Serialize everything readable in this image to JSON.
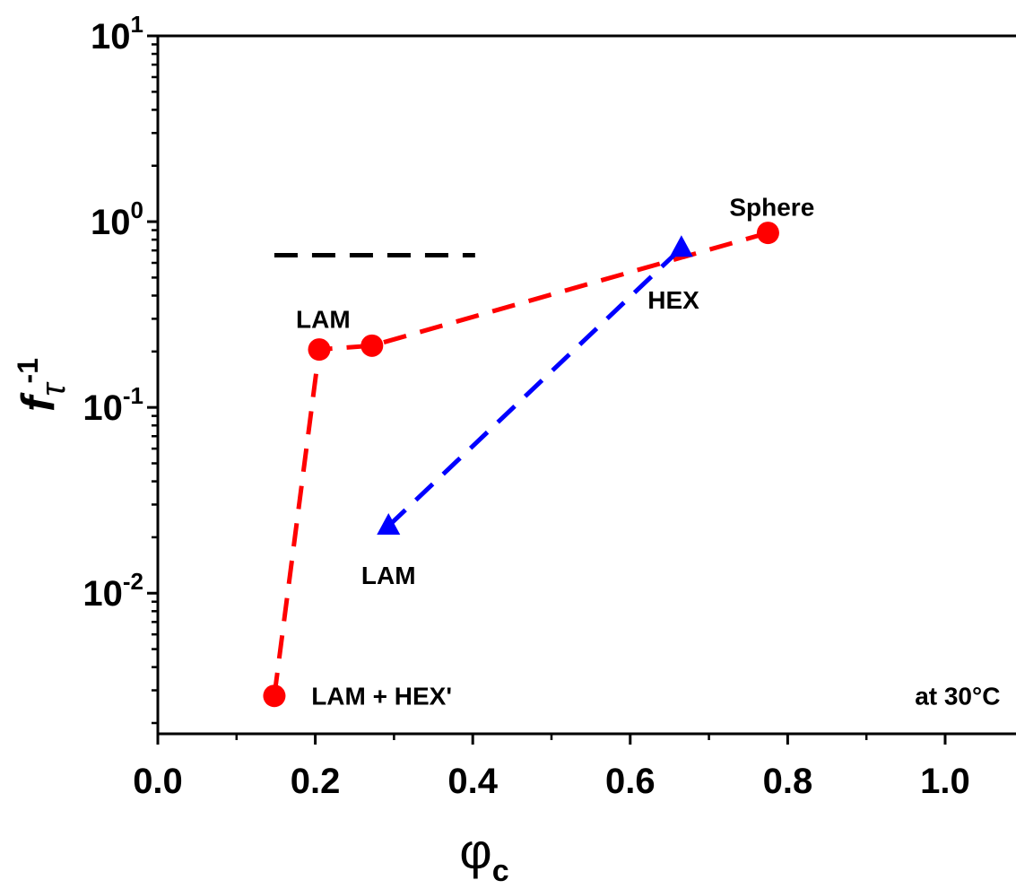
{
  "chart_data": {
    "type": "scatter",
    "xlabel": "φ",
    "xlabel_sub": "c",
    "ylabel": "f",
    "ylabel_sub": "τ",
    "ylabel_sup": "-1",
    "x_scale": "linear",
    "y_scale": "log",
    "xlim": [
      0.0,
      1.09
    ],
    "ylim": [
      0.00175,
      10
    ],
    "x_ticks": [
      {
        "value": 0.0,
        "label": "0.0"
      },
      {
        "value": 0.2,
        "label": "0.2"
      },
      {
        "value": 0.4,
        "label": "0.4"
      },
      {
        "value": 0.6,
        "label": "0.6"
      },
      {
        "value": 0.8,
        "label": "0.8"
      },
      {
        "value": 1.0,
        "label": "1.0"
      }
    ],
    "y_ticks": [
      {
        "value": 0.01,
        "base": "10",
        "exp": "-2"
      },
      {
        "value": 0.1,
        "base": "10",
        "exp": "-1"
      },
      {
        "value": 1,
        "base": "10",
        "exp": "0"
      },
      {
        "value": 10,
        "base": "10",
        "exp": "1"
      }
    ],
    "grid": false,
    "series": [
      {
        "marker": "circle",
        "color": "#ff0000",
        "line": "dashed",
        "points": [
          {
            "x": 0.148,
            "y": 0.0028
          },
          {
            "x": 0.205,
            "y": 0.205
          },
          {
            "x": 0.272,
            "y": 0.215
          },
          {
            "x": 0.775,
            "y": 0.87
          }
        ]
      },
      {
        "marker": "triangle",
        "color": "#0000ff",
        "line": "dashed",
        "points": [
          {
            "x": 0.293,
            "y": 0.023
          },
          {
            "x": 0.665,
            "y": 0.72
          }
        ]
      }
    ],
    "reference_line": {
      "color": "#000000",
      "style": "dashed",
      "y": 0.66,
      "x_start": 0.148,
      "x_end": 0.403
    },
    "annotations": [
      {
        "text": "Sphere",
        "x": 0.78,
        "y": 1.2,
        "anchor": "middle"
      },
      {
        "text": "HEX",
        "x": 0.655,
        "y": 0.38,
        "anchor": "middle"
      },
      {
        "text": "LAM",
        "x": 0.21,
        "y": 0.3,
        "anchor": "middle"
      },
      {
        "text": "LAM",
        "x": 0.293,
        "y": 0.0125,
        "anchor": "middle"
      },
      {
        "text": "LAM + HEX'",
        "x": 0.195,
        "y": 0.0028,
        "anchor": "start"
      },
      {
        "text": "at 30°C",
        "x": 1.07,
        "y": 0.0028,
        "anchor": "end"
      }
    ]
  }
}
